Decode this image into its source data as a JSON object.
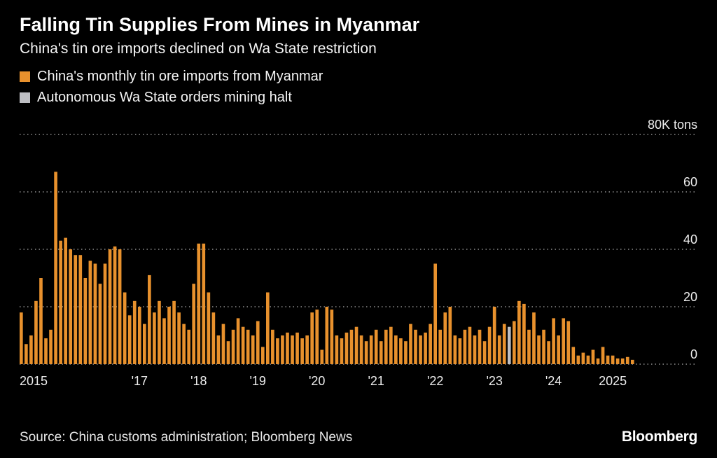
{
  "header": {
    "title": "Falling Tin Supplies From Mines in Myanmar",
    "subtitle": "China's tin ore imports declined on Wa State restriction"
  },
  "legend": {
    "items": [
      {
        "label": "China's monthly tin ore imports from Myanmar",
        "color": "#E8912D"
      },
      {
        "label": "Autonomous Wa State orders mining halt",
        "color": "#BDBEC2"
      }
    ]
  },
  "chart_data": {
    "type": "bar",
    "title": "China's monthly tin ore imports from Myanmar",
    "unit": "K tons",
    "ylim": [
      0,
      80
    ],
    "yticks": [
      0,
      20,
      40,
      60,
      80
    ],
    "ytick_labels": [
      "0",
      "20",
      "40",
      "60",
      "80K tons"
    ],
    "frequency": "monthly",
    "x_start": {
      "year": 2015,
      "month": 1
    },
    "x_tick_years": [
      2015,
      2017,
      2018,
      2019,
      2020,
      2021,
      2022,
      2023,
      2024,
      2025
    ],
    "x_tick_labels": [
      "2015",
      "'17",
      "'18",
      "'19",
      "'20",
      "'21",
      "'22",
      "'23",
      "'24",
      "2025"
    ],
    "bar_color": "#E8912D",
    "highlight_color": "#BDBEC2",
    "highlight_index": 99,
    "highlight_month": "2023-04",
    "highlight_label": "Autonomous Wa State orders mining halt",
    "values": [
      18,
      7,
      10,
      22,
      30,
      9,
      12,
      67,
      43,
      44,
      40,
      38,
      38,
      30,
      36,
      35,
      28,
      35,
      40,
      41,
      40,
      25,
      17,
      22,
      20,
      14,
      31,
      18,
      22,
      16,
      20,
      22,
      18,
      14,
      12,
      28,
      42,
      42,
      25,
      18,
      10,
      14,
      8,
      12,
      16,
      13,
      12,
      10,
      15,
      6,
      25,
      12,
      9,
      10,
      11,
      10,
      11,
      9,
      10,
      18,
      19,
      5,
      20,
      19,
      10,
      9,
      11,
      12,
      13,
      10,
      8,
      10,
      12,
      8,
      12,
      13,
      10,
      9,
      8,
      14,
      12,
      10,
      11,
      14,
      35,
      12,
      18,
      20,
      10,
      9,
      12,
      13,
      10,
      12,
      8,
      13,
      20,
      10,
      14,
      13,
      15,
      22,
      21,
      12,
      18,
      10,
      12,
      8,
      16,
      10,
      16,
      15,
      6,
      3,
      4,
      3,
      5,
      2,
      6,
      3,
      3,
      2,
      2,
      2.5,
      1.5
    ]
  },
  "footer": {
    "source": "Source: China customs administration; Bloomberg News",
    "brand": "Bloomberg"
  }
}
